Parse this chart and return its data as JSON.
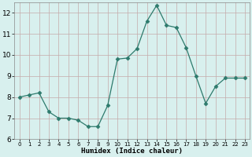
{
  "x": [
    0,
    1,
    2,
    3,
    4,
    5,
    6,
    7,
    8,
    9,
    10,
    11,
    12,
    13,
    14,
    15,
    16,
    17,
    18,
    19,
    20,
    21,
    22,
    23
  ],
  "y": [
    8.0,
    8.1,
    8.2,
    7.3,
    7.0,
    7.0,
    6.9,
    6.6,
    6.6,
    7.6,
    9.8,
    9.85,
    10.3,
    11.6,
    12.35,
    11.4,
    11.3,
    10.35,
    9.0,
    7.7,
    8.5,
    8.9,
    8.9,
    8.9
  ],
  "xlabel": "Humidex (Indice chaleur)",
  "ylim": [
    6,
    12.5
  ],
  "xlim": [
    -0.5,
    23.5
  ],
  "yticks": [
    6,
    7,
    8,
    9,
    10,
    11,
    12
  ],
  "xticks": [
    0,
    1,
    2,
    3,
    4,
    5,
    6,
    7,
    8,
    9,
    10,
    11,
    12,
    13,
    14,
    15,
    16,
    17,
    18,
    19,
    20,
    21,
    22,
    23
  ],
  "line_color": "#2d7a6c",
  "marker": "D",
  "marker_size": 2.5,
  "bg_color": "#d8f0ee",
  "grid_color": "#c4aaaa",
  "xlabel_fontsize": 6.5,
  "tick_fontsize_x": 5.0,
  "tick_fontsize_y": 6.5
}
